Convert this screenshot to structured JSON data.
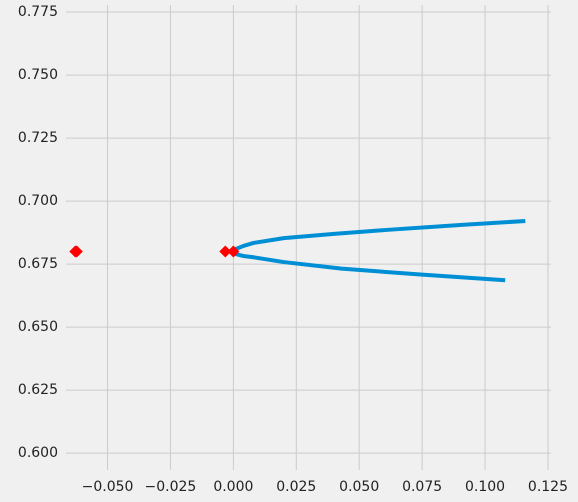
{
  "chart_data": {
    "type": "line",
    "xlim": [
      -0.0665,
      0.1262
    ],
    "ylim": [
      0.5933,
      0.7778
    ],
    "xticks": [
      {
        "value": -0.05,
        "label": "−0.050"
      },
      {
        "value": -0.025,
        "label": "−0.025"
      },
      {
        "value": 0,
        "label": "0.000"
      },
      {
        "value": 0.025,
        "label": "0.025"
      },
      {
        "value": 0.05,
        "label": "0.050"
      },
      {
        "value": 0.075,
        "label": "0.075"
      },
      {
        "value": 0.1,
        "label": "0.100"
      },
      {
        "value": 0.125,
        "label": "0.125"
      }
    ],
    "yticks": [
      {
        "value": 0.6,
        "label": "0.600"
      },
      {
        "value": 0.625,
        "label": "0.625"
      },
      {
        "value": 0.65,
        "label": "0.650"
      },
      {
        "value": 0.675,
        "label": "0.675"
      },
      {
        "value": 0.7,
        "label": "0.700"
      },
      {
        "value": 0.725,
        "label": "0.725"
      },
      {
        "value": 0.75,
        "label": "0.750"
      },
      {
        "value": 0.775,
        "label": "0.775"
      }
    ],
    "grid": true,
    "series": [
      {
        "style": "line",
        "color": "#008fd5",
        "x": [
          0.116,
          0.09,
          0.06,
          0.04,
          0.02,
          0.008,
          0.004,
          0.001,
          0,
          0.001,
          0.004,
          0.008,
          0.02,
          0.043,
          0.075,
          0.108
        ],
        "values": [
          0.6921,
          0.6905,
          0.6885,
          0.687,
          0.6853,
          0.6834,
          0.6822,
          0.681,
          0.68,
          0.679,
          0.6782,
          0.6777,
          0.6758,
          0.6732,
          0.6708,
          0.6686
        ]
      },
      {
        "style": "markers",
        "color": "#ff0000",
        "x": [
          -0.0628,
          -0.0622,
          -0.0032,
          0.0
        ],
        "values": [
          0.68,
          0.68,
          0.68,
          0.68
        ]
      }
    ]
  }
}
